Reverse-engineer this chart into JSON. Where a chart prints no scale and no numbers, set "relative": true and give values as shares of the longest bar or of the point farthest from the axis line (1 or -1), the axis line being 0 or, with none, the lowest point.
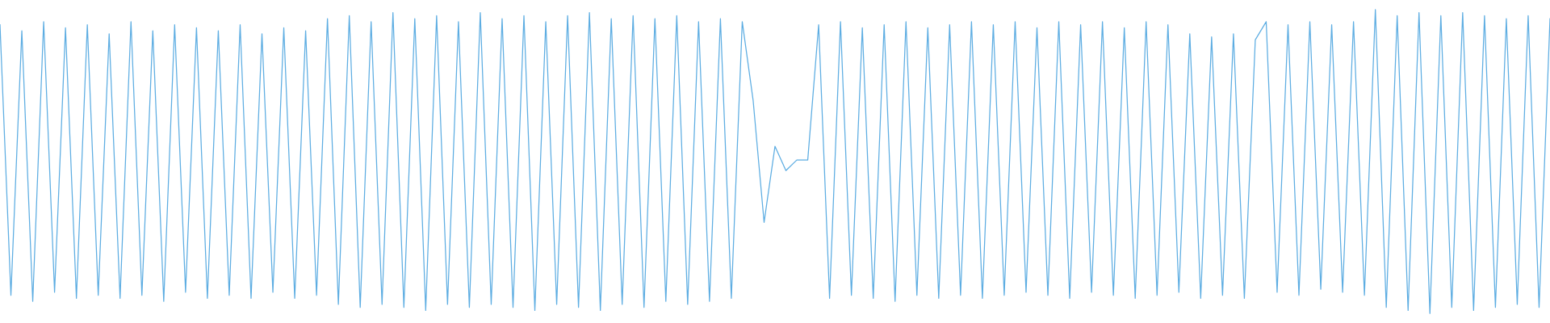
{
  "chart_data": {
    "type": "line",
    "relative": true,
    "categories": [
      null,
      null,
      null,
      null,
      null,
      null,
      null,
      null,
      null,
      null,
      null,
      null,
      null,
      null,
      null,
      null,
      null,
      null,
      null,
      null,
      null,
      null,
      null,
      null,
      null,
      null,
      null,
      null,
      null,
      null,
      null,
      null,
      null,
      null,
      null,
      null,
      null,
      null,
      null,
      null,
      null,
      null,
      null,
      null,
      null,
      null,
      null,
      null,
      null,
      null,
      null,
      null,
      null,
      null,
      null,
      null,
      null,
      null,
      null,
      null,
      null,
      null,
      null,
      null,
      null,
      null,
      null,
      null,
      null,
      null,
      null,
      null,
      null,
      null,
      null,
      null,
      null,
      null,
      null,
      null,
      null,
      null,
      null,
      null,
      null,
      null,
      null,
      null,
      null,
      null,
      null,
      null,
      null,
      null,
      null,
      null,
      null,
      null,
      null,
      null,
      null,
      null,
      null,
      null,
      null,
      null,
      null,
      null,
      null,
      null,
      null,
      null,
      null,
      null,
      null,
      null,
      null,
      null,
      null,
      null,
      null,
      null,
      null,
      null,
      null,
      null,
      null,
      null,
      null,
      null,
      null,
      null,
      null,
      null,
      null,
      null,
      null,
      null,
      null,
      null,
      null,
      null,
      null
    ],
    "series": [
      {
        "color": "#5dade2",
        "values": [
          0.95,
          0.06,
          0.93,
          0.04,
          0.96,
          0.07,
          0.94,
          0.05,
          0.95,
          0.06,
          0.92,
          0.05,
          0.96,
          0.06,
          0.93,
          0.04,
          0.95,
          0.07,
          0.94,
          0.05,
          0.93,
          0.06,
          0.95,
          0.05,
          0.92,
          0.07,
          0.94,
          0.05,
          0.93,
          0.06,
          0.97,
          0.03,
          0.98,
          0.02,
          0.96,
          0.03,
          0.99,
          0.02,
          0.97,
          0.01,
          0.98,
          0.03,
          0.96,
          0.02,
          0.99,
          0.03,
          0.97,
          0.02,
          0.98,
          0.01,
          0.96,
          0.03,
          0.98,
          0.02,
          0.99,
          0.01,
          0.97,
          0.03,
          0.98,
          0.02,
          0.97,
          0.04,
          0.98,
          0.03,
          0.96,
          0.04,
          0.97,
          0.05,
          0.96,
          0.7,
          0.3,
          0.55,
          0.47,
          0.505,
          0.505,
          0.95,
          0.05,
          0.96,
          0.06,
          0.94,
          0.05,
          0.95,
          0.04,
          0.96,
          0.06,
          0.94,
          0.05,
          0.95,
          0.06,
          0.96,
          0.05,
          0.95,
          0.06,
          0.96,
          0.07,
          0.94,
          0.06,
          0.96,
          0.05,
          0.95,
          0.07,
          0.96,
          0.06,
          0.94,
          0.05,
          0.96,
          0.06,
          0.95,
          0.07,
          0.92,
          0.05,
          0.91,
          0.06,
          0.92,
          0.05,
          0.9,
          0.96,
          0.07,
          0.95,
          0.06,
          0.96,
          0.08,
          0.95,
          0.07,
          0.96,
          0.06,
          1.0,
          0.02,
          0.98,
          0.01,
          0.99,
          0.0,
          0.98,
          0.02,
          0.99,
          0.01,
          0.98,
          0.02,
          0.97,
          0.03,
          0.98,
          0.02,
          0.97
        ]
      }
    ]
  }
}
